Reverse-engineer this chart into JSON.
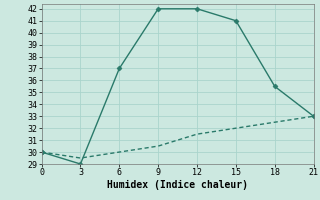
{
  "xlabel": "Humidex (Indice chaleur)",
  "background_color": "#cce8e0",
  "grid_color": "#aad4cc",
  "line_color": "#2a7a6a",
  "line1_x": [
    0,
    3,
    6,
    9,
    12,
    15,
    18,
    21
  ],
  "line1_y": [
    30,
    29,
    37,
    42,
    42,
    41,
    35.5,
    33
  ],
  "line2_x": [
    0,
    3,
    6,
    9,
    12,
    15,
    18,
    21
  ],
  "line2_y": [
    30,
    29.5,
    30,
    30.5,
    31.5,
    32,
    32.5,
    33
  ],
  "xlim": [
    0,
    21
  ],
  "ylim": [
    29,
    42.4
  ],
  "xticks": [
    0,
    3,
    6,
    9,
    12,
    15,
    18,
    21
  ],
  "yticks": [
    29,
    30,
    31,
    32,
    33,
    34,
    35,
    36,
    37,
    38,
    39,
    40,
    41,
    42
  ],
  "marker": "D",
  "marker_size": 2.5,
  "line_width": 1.0,
  "font_family": "monospace",
  "axis_fontsize": 7,
  "tick_fontsize": 6
}
